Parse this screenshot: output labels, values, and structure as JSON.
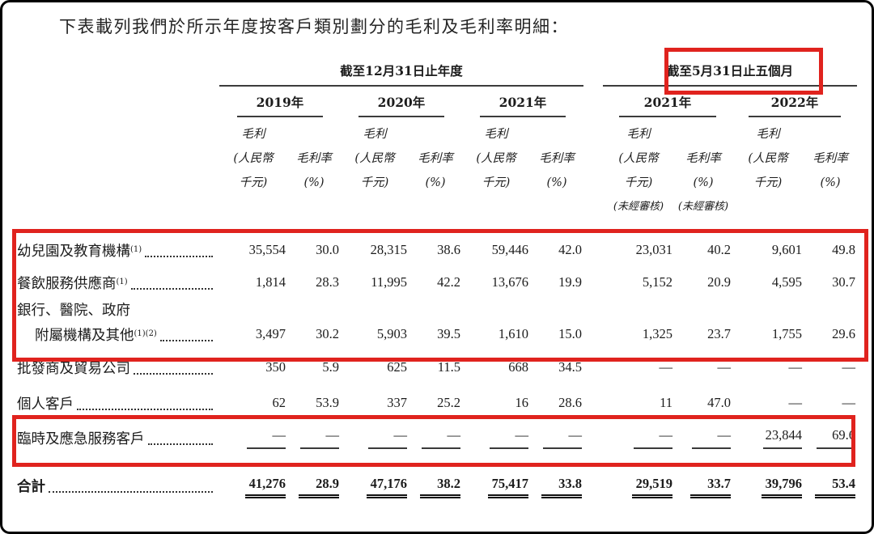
{
  "title": "下表載列我們於所示年度按客戶類別劃分的毛利及毛利率明細：",
  "colors": {
    "highlight": "#e0231e"
  },
  "header": {
    "group1": {
      "label": "截至12月31日止年度"
    },
    "group2": {
      "label": "截至5月31日止五個月"
    },
    "years": [
      "2019年",
      "2020年",
      "2021年",
      "2021年",
      "2022年"
    ],
    "sub": {
      "gp": [
        "毛利",
        "(人民幣",
        "千元)"
      ],
      "gm": [
        "毛利率",
        "(%)"
      ],
      "unaudited": "(未經審核)"
    }
  },
  "rows": [
    {
      "label": "幼兒園及教育機構",
      "sup": "(1)",
      "values": [
        "35,554",
        "30.0",
        "28,315",
        "38.6",
        "59,446",
        "42.0",
        "23,031",
        "40.2",
        "9,601",
        "49.8"
      ]
    },
    {
      "label": "餐飲服務供應商",
      "sup": "(1)",
      "values": [
        "1,814",
        "28.3",
        "11,995",
        "42.2",
        "13,676",
        "19.9",
        "5,152",
        "20.9",
        "4,595",
        "30.7"
      ]
    },
    {
      "label_line1": "銀行、醫院、政府",
      "label": "附屬機構及其他",
      "sup": "(1)(2)",
      "values": [
        "3,497",
        "30.2",
        "5,903",
        "39.5",
        "1,610",
        "15.0",
        "1,325",
        "23.7",
        "1,755",
        "29.6"
      ]
    },
    {
      "label": "批發商及貿易公司",
      "values": [
        "350",
        "5.9",
        "625",
        "11.5",
        "668",
        "34.5",
        "—",
        "—",
        "—",
        "—"
      ]
    },
    {
      "label": "個人客戶",
      "values": [
        "62",
        "53.9",
        "337",
        "25.2",
        "16",
        "28.6",
        "11",
        "47.0",
        "—",
        "—"
      ]
    },
    {
      "label": "臨時及應急服務客戶",
      "values": [
        "—",
        "—",
        "—",
        "—",
        "—",
        "—",
        "—",
        "—",
        "23,844",
        "69.6"
      ]
    }
  ],
  "total": {
    "label": "合計",
    "values": [
      "41,276",
      "28.9",
      "47,176",
      "38.2",
      "75,417",
      "33.8",
      "29,519",
      "33.7",
      "39,796",
      "53.4"
    ]
  }
}
